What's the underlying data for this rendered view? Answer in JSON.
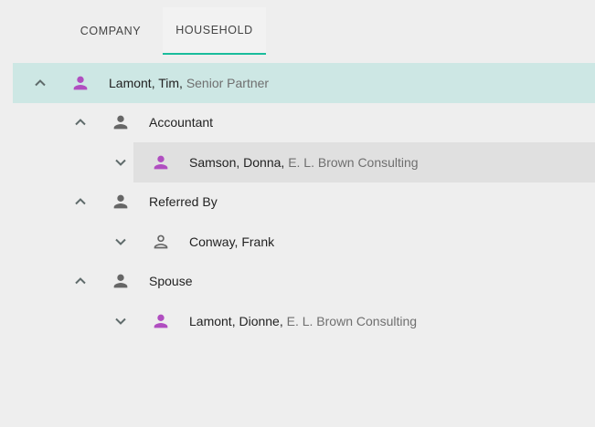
{
  "tabs": [
    {
      "label": "COMPANY",
      "active": false
    },
    {
      "label": "HOUSEHOLD",
      "active": true
    }
  ],
  "colors": {
    "accent": "#1abc9c",
    "selected_row": "#cde7e4",
    "hover_row": "#e0e0e0",
    "contact_person": "#b04ec0",
    "relation": "#666666"
  },
  "tree": [
    {
      "level": 0,
      "expanded": true,
      "icon": "person-icon",
      "name": "Lamont, Tim,",
      "detail": "Senior Partner",
      "state": "selected"
    },
    {
      "level": 1,
      "expanded": true,
      "icon": "person-icon",
      "name": "Accountant",
      "detail": "",
      "state": ""
    },
    {
      "level": 2,
      "expanded": false,
      "icon": "person-icon",
      "name": "Samson, Donna,",
      "detail": "E. L. Brown Consulting",
      "state": "hover"
    },
    {
      "level": 1,
      "expanded": true,
      "icon": "person-icon",
      "name": "Referred By",
      "detail": "",
      "state": ""
    },
    {
      "level": 2,
      "expanded": false,
      "icon": "person-outline-icon",
      "name": "Conway, Frank",
      "detail": "",
      "state": ""
    },
    {
      "level": 1,
      "expanded": true,
      "icon": "person-icon",
      "name": "Spouse",
      "detail": "",
      "state": ""
    },
    {
      "level": 2,
      "expanded": false,
      "icon": "person-icon",
      "name": "Lamont, Dionne,",
      "detail": "E. L. Brown Consulting",
      "state": ""
    }
  ]
}
